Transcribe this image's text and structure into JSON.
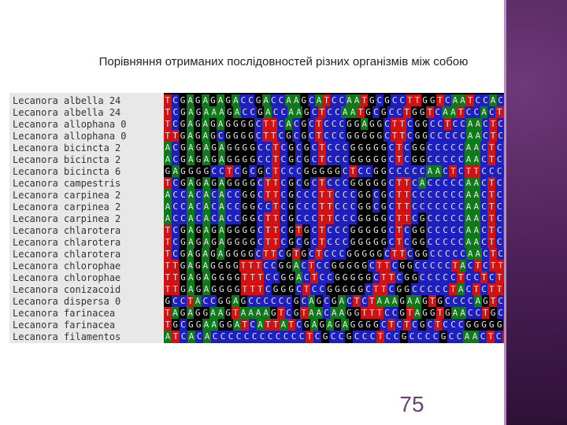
{
  "slide": {
    "title": "Порівняння отриманих послідовностей різних організмів між собою",
    "page_number": "75"
  },
  "colors": {
    "A": "#0e7a1a",
    "C": "#1d1fbf",
    "G": "#000000",
    "T": "#d21212",
    "accent": "#4a1f55"
  },
  "alignment": {
    "rows": [
      {
        "name": "Lecanora albella 24",
        "seq": "TCGAGAGAGACCGACCAAGCATCCAATGCGCCTTGGTCAATCCACTTCTCA"
      },
      {
        "name": "Lecanora albella 24",
        "seq": "TCGAGAAAGACCGACCAAGCTCCAATGCGCCTGGTCAATCCACTTCTCAC"
      },
      {
        "name": "Lecanora allophana 0",
        "seq": "TCGAGAGAGGGGCTTCACGCTCCCGGAGGCTTCGGCCTCCAACTCTTCACC"
      },
      {
        "name": "Lecanora allophana 0",
        "seq": "TTGAGAGCGGGGCTTCGCGCTCCCGGGGGCTTCGGCCCCCAACTCTTCACC"
      },
      {
        "name": "Lecanora bicincta 2",
        "seq": "ACGAGAGAGGGGCCTCGCGCTCCCGGGGGCTCGGCCCCCAACTCTTTCAC"
      },
      {
        "name": "Lecanora bicincta 2",
        "seq": "ACGAGAGAGGGGCCTCGCGCTCCCGGGGGCTCGGCCCCCAACTCTTTCAC"
      },
      {
        "name": "Lecanora bicincta 6",
        "seq": "GAGGGGCCTCGCGCTCCCGGGGGCTCCGGCCCCCAACTCTTCCCCCGTGT"
      },
      {
        "name": "Lecanora campestris",
        "seq": "TCGAGAGAGGGGCTTCGCGCTCCCGGGGGCTTCACCCCCAACTCTTCGCC"
      },
      {
        "name": "Lecanora carpinea 2",
        "seq": "ACCACACACCGGCTTCGCCCTTCCCGGCGCTTCCCCCCCAACTCTTCACC"
      },
      {
        "name": "Lecanora carpinea 2",
        "seq": "ACCACACACCGGCCTCGCCCTTCCCGGCGCTTCCCCCCCAACTCTTCACC"
      },
      {
        "name": "Lecanora carpinea 2",
        "seq": "ACCACACACCGGCTTCGCCCTTCCCGGGGCTTCGCCCCCAACTCTTCACC"
      },
      {
        "name": "Lecanora chlarotera",
        "seq": "TCGAGAGAGGGGCTTCGTGCTCCCGGGGGCTCGGCCCCCAACTCTTCACC"
      },
      {
        "name": "Lecanora chlarotera",
        "seq": "TCGAGAGAGGGGCTTCGCGCTCCCGGGGGCTCGGCCCCCAACTCTTCACC"
      },
      {
        "name": "Lecanora chlarotera",
        "seq": "TCGAGAGAGGGGCTTCGTGCTCCCGGGGGCTTCGGCCCCCAACTCTTCACC"
      },
      {
        "name": "Lecanora chlorophae",
        "seq": "TTGAGAGGGGTTTCCGGACTCCGGGGGCTTCGGCCCCCTACTCTTCACCTT"
      },
      {
        "name": "Lecanora chlorophae",
        "seq": "TTGAGAGGGGTTTCCGGACTCCGGGGGCTTCGGCCCCCTCCTCTTCACCC"
      },
      {
        "name": "Lecanora conizacoid",
        "seq": "TTGAGAGGGGTTTCGGGCTCCGGGGGCTTCGGCCCCCTACTCTTCACCCT"
      },
      {
        "name": "Lecanora dispersa 0",
        "seq": "GCCTACCGGAGCCCCCCGCAGCGACTCTAAAGAAGTGCCCCAGTCGGCCCC"
      },
      {
        "name": "Lecanora farinacea",
        "seq": "TAGAGGAAGTAAAAGTCGTAACAAGGTTTCCGTAGGTGAACCTGCGGAAGG"
      },
      {
        "name": "Lecanora farinacea",
        "seq": "TGCGGAAGGATCATTATCGAGAGAGGGGCTCTCGCTCCCGGGGGTTTCGG"
      },
      {
        "name": "Lecanora filamentos",
        "seq": "ATCACACCCCCCCCCCCCTCGCCGCCCTCCGCCCCGCCAACTCTTCACC"
      }
    ]
  }
}
